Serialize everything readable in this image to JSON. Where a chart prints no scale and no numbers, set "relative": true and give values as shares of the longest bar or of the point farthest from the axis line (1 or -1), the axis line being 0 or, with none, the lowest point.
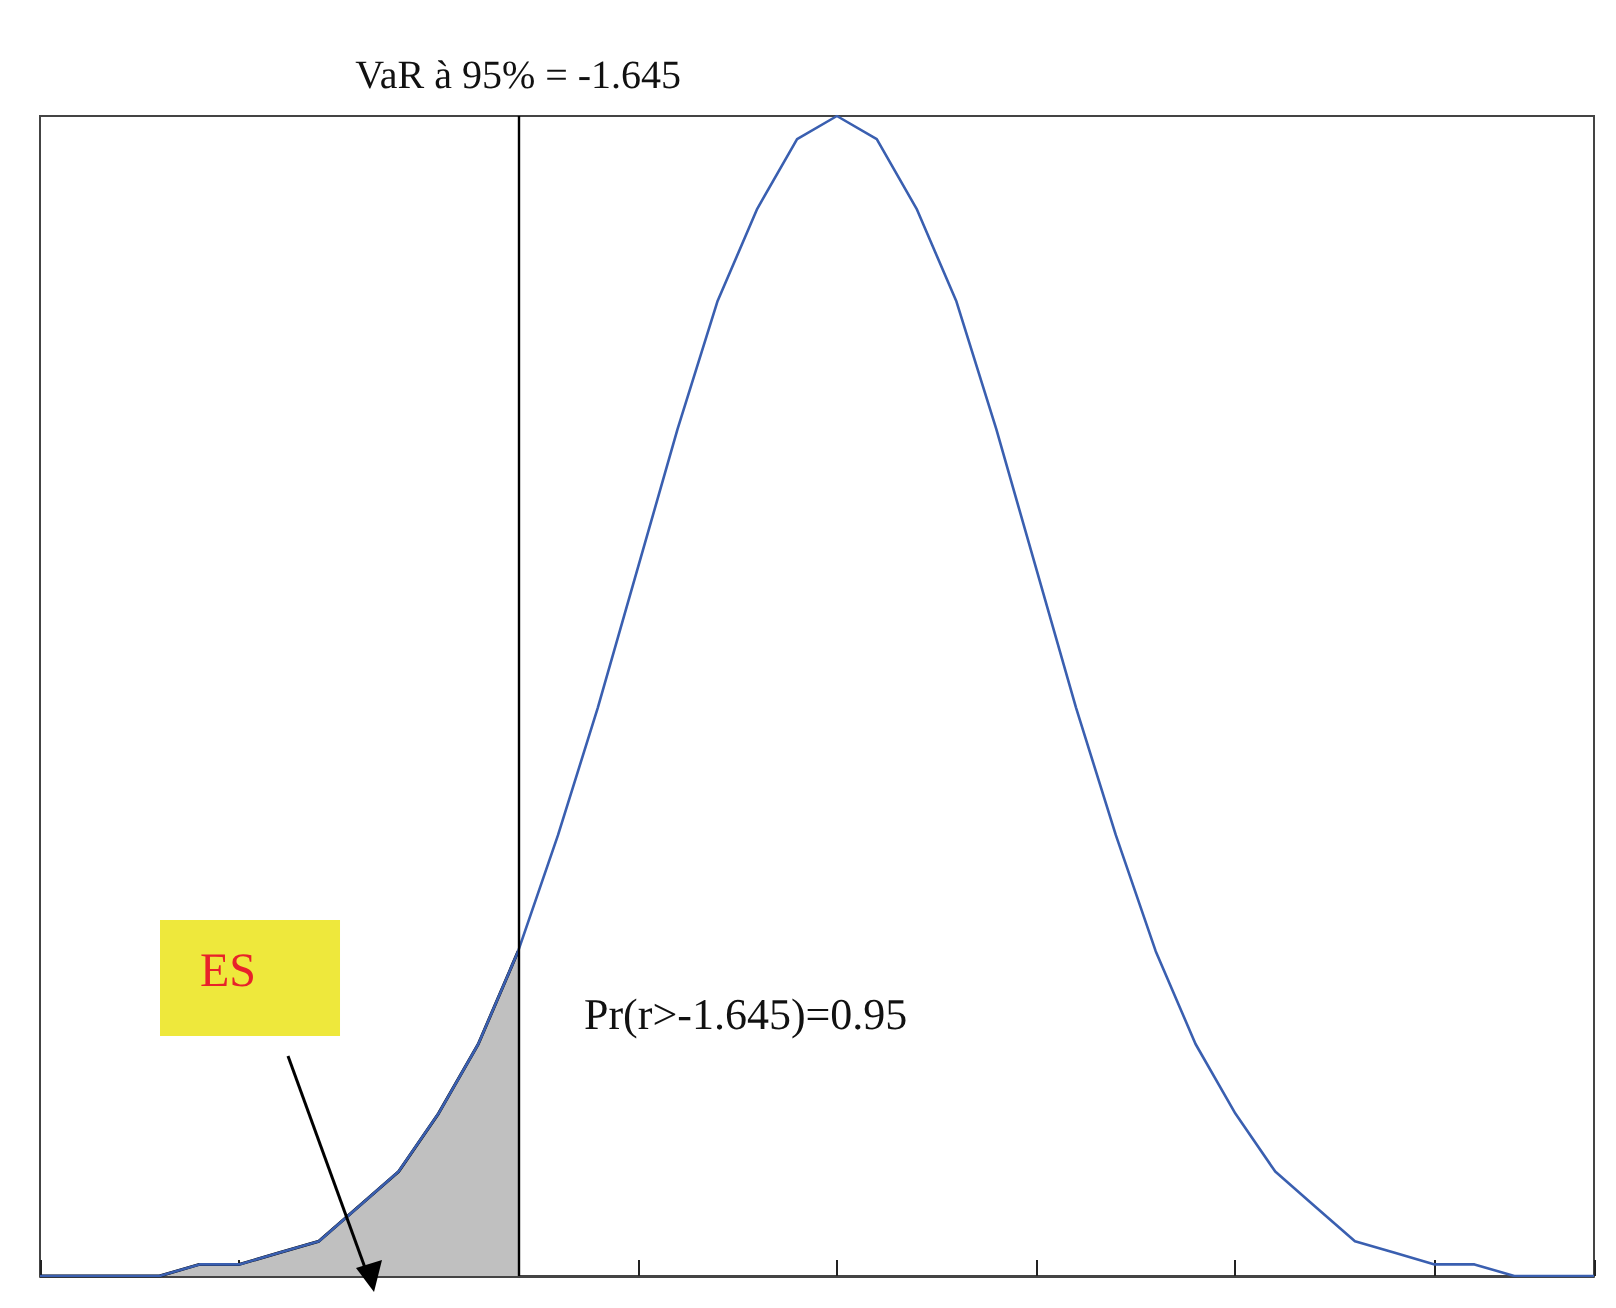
{
  "chart_data": {
    "type": "line",
    "relative": true,
    "marker": "none",
    "categories": [
      null,
      null,
      null,
      null,
      null,
      null,
      null,
      null,
      null,
      null,
      null,
      null,
      null,
      null,
      null,
      null,
      null,
      null,
      null,
      null,
      null,
      null,
      null,
      null,
      null,
      null,
      null,
      null,
      null,
      null,
      null,
      null,
      null,
      null,
      null,
      null,
      null,
      null,
      null,
      null
    ],
    "series": [
      {
        "color": "#3a5fb0",
        "values": [
          0,
          0,
          0,
          0,
          0.01,
          0.01,
          0.02,
          0.03,
          0.06,
          0.09,
          0.14,
          0.2,
          0.28,
          0.38,
          0.49,
          0.61,
          0.73,
          0.84,
          0.92,
          0.98,
          1,
          0.98,
          0.92,
          0.84,
          0.73,
          0.61,
          0.49,
          0.38,
          0.28,
          0.2,
          0.14,
          0.09,
          0.06,
          0.03,
          0.02,
          0.01,
          0.01,
          0,
          0,
          0
        ]
      },
      {
        "type": "area",
        "color": "#c0c0c0",
        "values": [
          0,
          0,
          0,
          0,
          0.01,
          0.01,
          0.02,
          0.03,
          0.06,
          0.09,
          0.14,
          0.2,
          0.28,
          null,
          null,
          null,
          null,
          null,
          null,
          null,
          null,
          null,
          null,
          null,
          null,
          null,
          null,
          null,
          null,
          null,
          null,
          null,
          null,
          null,
          null,
          null,
          null,
          null,
          null,
          null
        ]
      }
    ],
    "ref_lines": [
      {
        "axis": "x",
        "label": "VaR à 95% = -1.645",
        "color": "#000000"
      }
    ],
    "annotations": [
      "Pr(r>-1.645)=0.95",
      "ES"
    ]
  }
}
